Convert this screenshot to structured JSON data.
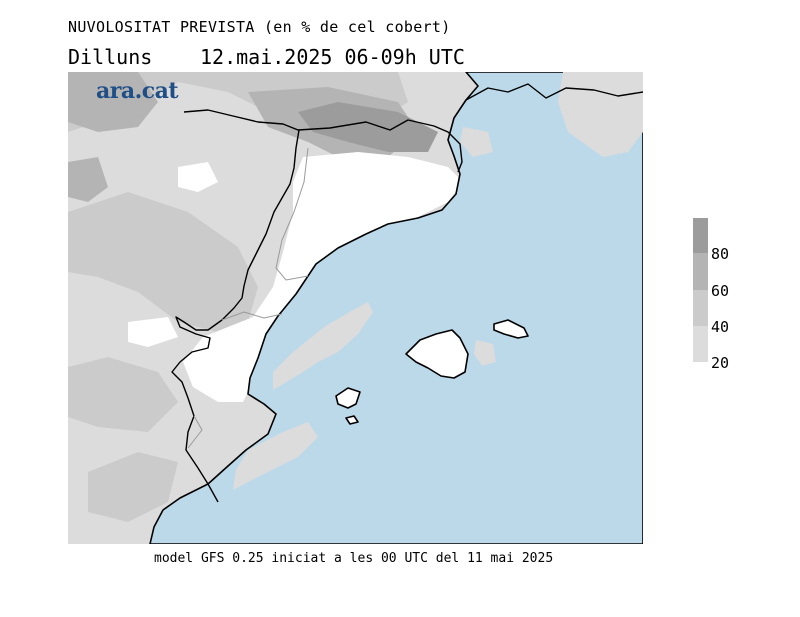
{
  "title": "NUVOLOSITAT PREVISTA (en % de cel cobert)",
  "day": "Dilluns",
  "date_time": "12.mai.2025 06-09h UTC",
  "logo": "ara.cat",
  "legend": {
    "labels": [
      "80",
      "60",
      "40",
      "20"
    ],
    "colors": [
      "#9c9c9c",
      "#b4b4b4",
      "#cbcbcb",
      "#dcdcdc"
    ]
  },
  "footer": "model GFS 0.25 iniciat a les 00 UTC del 11 mai 2025",
  "colors": {
    "sea": "#bcd9ea",
    "land_clear": "#ffffff",
    "coast": "#000000"
  }
}
